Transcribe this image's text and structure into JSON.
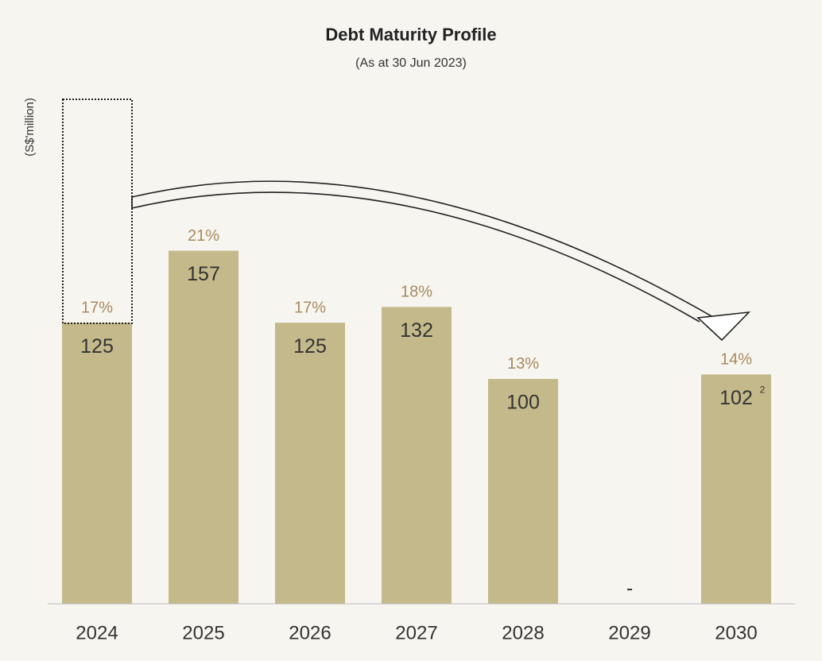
{
  "chart_data": {
    "type": "bar",
    "title": "Debt Maturity Profile",
    "subtitle": "(As at 30 Jun 2023)",
    "y_label": "(S$'million)",
    "categories": [
      "2024",
      "2025",
      "2026",
      "2027",
      "2028",
      "2029",
      "2030"
    ],
    "values": [
      125,
      157,
      125,
      132,
      100,
      0,
      102
    ],
    "value_labels": [
      "125",
      "157",
      "125",
      "132",
      "100",
      "-",
      "102"
    ],
    "value_footnotes": [
      null,
      null,
      null,
      null,
      null,
      null,
      "2"
    ],
    "share_labels": [
      "17%",
      "21%",
      "17%",
      "18%",
      "13%",
      null,
      "14%"
    ],
    "color": "#c4b98a",
    "ylim": [
      0,
      230
    ]
  }
}
